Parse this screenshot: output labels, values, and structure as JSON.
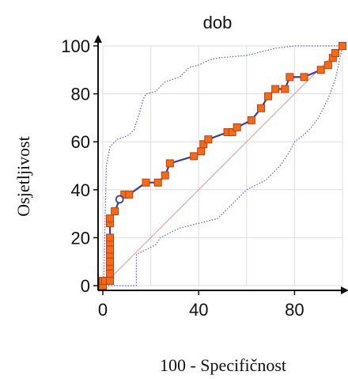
{
  "chart_data": {
    "type": "line",
    "title": "dob",
    "xlabel": "100 - Specifičnost",
    "ylabel": "Osjetljivost",
    "xlim": [
      0,
      100
    ],
    "ylim": [
      0,
      100
    ],
    "x_ticks": [
      "0",
      "40",
      "80"
    ],
    "y_ticks": [
      "0",
      "20",
      "40",
      "60",
      "80",
      "100"
    ],
    "grid": true,
    "reference_line": {
      "from": [
        0,
        0
      ],
      "to": [
        100,
        100
      ]
    },
    "colors": {
      "roc_line": "#3c3c9a",
      "marker_fill": "#f26b1d",
      "marker_stroke": "#b8420c",
      "ci_band": "#5b5bc4",
      "reference": "#c8a0a0",
      "grid": "#dddddd",
      "criterion_marker_stroke": "#3c3c9a"
    },
    "series": [
      {
        "values": [
          [
            0,
            0
          ],
          [
            0,
            2
          ],
          [
            1,
            2
          ],
          [
            3,
            2
          ],
          [
            3,
            5
          ],
          [
            3,
            8
          ],
          [
            3,
            10
          ],
          [
            3,
            13
          ],
          [
            3,
            15
          ],
          [
            3,
            18
          ],
          [
            3,
            20
          ],
          [
            3,
            26
          ],
          [
            3,
            28
          ],
          [
            5,
            31
          ],
          [
            7,
            36
          ],
          [
            9,
            38
          ],
          [
            11,
            38
          ],
          [
            18,
            43
          ],
          [
            23,
            43
          ],
          [
            26,
            46
          ],
          [
            28,
            51
          ],
          [
            38,
            54
          ],
          [
            41,
            56
          ],
          [
            42,
            59
          ],
          [
            44,
            61
          ],
          [
            52,
            64
          ],
          [
            54,
            64
          ],
          [
            56,
            66
          ],
          [
            62,
            69
          ],
          [
            66,
            74
          ],
          [
            69,
            79
          ],
          [
            72,
            82
          ],
          [
            76,
            82
          ],
          [
            78,
            87
          ],
          [
            84,
            87
          ],
          [
            91,
            90
          ],
          [
            94,
            92
          ],
          [
            96,
            95
          ],
          [
            97,
            97
          ],
          [
            100,
            100
          ]
        ]
      }
    ],
    "criterion_point": [
      7,
      36
    ],
    "ci_upper": [
      [
        0,
        0
      ],
      [
        0.5,
        5
      ],
      [
        1,
        30
      ],
      [
        1.5,
        50
      ],
      [
        3,
        58
      ],
      [
        6,
        61
      ],
      [
        9,
        62
      ],
      [
        11,
        63
      ],
      [
        13,
        65
      ],
      [
        15,
        71
      ],
      [
        17,
        78
      ],
      [
        18,
        80
      ],
      [
        22,
        81
      ],
      [
        24,
        83
      ],
      [
        26,
        85
      ],
      [
        32,
        87
      ],
      [
        36,
        91
      ],
      [
        40,
        92
      ],
      [
        44,
        94
      ],
      [
        48,
        95
      ],
      [
        60,
        96
      ],
      [
        72,
        99
      ],
      [
        80,
        100
      ],
      [
        100,
        100
      ]
    ],
    "ci_lower": [
      [
        0,
        0
      ],
      [
        14,
        0
      ],
      [
        14,
        13
      ],
      [
        18,
        15
      ],
      [
        22,
        17
      ],
      [
        24,
        20
      ],
      [
        28,
        22
      ],
      [
        32,
        24
      ],
      [
        40,
        26
      ],
      [
        48,
        28
      ],
      [
        56,
        36
      ],
      [
        60,
        40
      ],
      [
        64,
        42
      ],
      [
        68,
        44
      ],
      [
        70,
        46
      ],
      [
        74,
        50
      ],
      [
        78,
        56
      ],
      [
        80,
        60
      ],
      [
        84,
        63
      ],
      [
        87,
        66
      ],
      [
        90,
        70
      ],
      [
        94,
        78
      ],
      [
        97,
        86
      ],
      [
        99,
        95
      ],
      [
        100,
        100
      ]
    ]
  }
}
